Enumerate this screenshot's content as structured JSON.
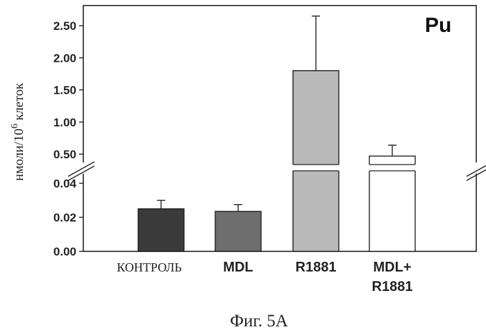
{
  "chart_data": {
    "type": "bar",
    "panel_tag": "Pu",
    "ylabel_main": "нмоли/10",
    "ylabel_sup": "6",
    "ylabel_tail": " клеток",
    "caption": "Фиг. 5А",
    "axis_break": true,
    "ylim_lower": [
      0,
      0.05
    ],
    "ylim_upper": [
      0.4,
      2.7
    ],
    "ticks_lower": [
      {
        "value": 0.0,
        "label": "0.00"
      },
      {
        "value": 0.02,
        "label": "0.02"
      },
      {
        "value": 0.04,
        "label": "0.04"
      }
    ],
    "ticks_upper": [
      {
        "value": 0.5,
        "label": "0.50"
      },
      {
        "value": 1.0,
        "label": "1.00"
      },
      {
        "value": 1.5,
        "label": "1.50"
      },
      {
        "value": 2.0,
        "label": "2.00"
      },
      {
        "value": 2.5,
        "label": "2.50"
      }
    ],
    "categories": [
      {
        "label": "КОНТРОЛЬ",
        "lines": [
          "КОНТРОЛЬ"
        ],
        "style": "serif",
        "value": 0.025,
        "error": 0.005,
        "color": "#3a3a3a"
      },
      {
        "label": "MDL",
        "lines": [
          "MDL"
        ],
        "style": "bold",
        "value": 0.0235,
        "error": 0.004,
        "color": "#6e6e6e"
      },
      {
        "label": "R1881",
        "lines": [
          "R1881"
        ],
        "style": "bold",
        "value": 1.8,
        "error": 0.85,
        "color": "#b9b9b9"
      },
      {
        "label": "MDL+ R1881",
        "lines": [
          "MDL+",
          "R1881"
        ],
        "style": "bold",
        "value": 0.47,
        "error": 0.17,
        "color": "#ffffff"
      }
    ],
    "grid": false
  }
}
